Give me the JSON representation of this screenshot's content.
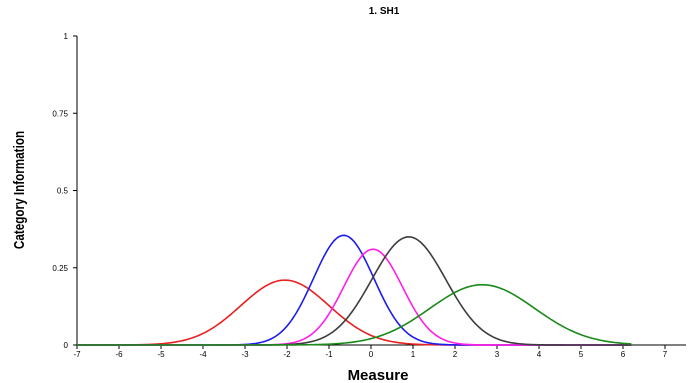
{
  "chart_data": {
    "type": "line",
    "title": "1. SH1",
    "xlabel": "Measure",
    "ylabel": "Category Information",
    "xlim": [
      -7,
      7.5
    ],
    "ylim": [
      0,
      1
    ],
    "xticks": [
      -7,
      -6,
      -5,
      -4,
      -3,
      -2,
      -1,
      0,
      1,
      2,
      3,
      4,
      5,
      6,
      7
    ],
    "yticks": [
      0,
      0.25,
      0.5,
      0.75,
      1
    ],
    "ytick_labels": [
      "0",
      "0.25",
      "0.5",
      "0.75",
      "1"
    ],
    "grid": false,
    "series": [
      {
        "color": "#e8201f",
        "peak_x": -2.05,
        "peak_y": 0.21,
        "sigma": 1.05,
        "x_range": [
          -7,
          6.2
        ]
      },
      {
        "color": "#1c1cf0",
        "peak_x": -0.65,
        "peak_y": 0.355,
        "sigma": 0.72,
        "x_range": [
          -7,
          6.2
        ]
      },
      {
        "color": "#ff1fe8",
        "peak_x": 0.05,
        "peak_y": 0.31,
        "sigma": 0.7,
        "x_range": [
          -7,
          6.2
        ]
      },
      {
        "color": "#3c3c3c",
        "peak_x": 0.9,
        "peak_y": 0.35,
        "sigma": 0.88,
        "x_range": [
          -7,
          6.2
        ]
      },
      {
        "color": "#1a8a1a",
        "peak_x": 2.65,
        "peak_y": 0.195,
        "sigma": 1.25,
        "x_range": [
          -7,
          6.2
        ]
      }
    ]
  }
}
